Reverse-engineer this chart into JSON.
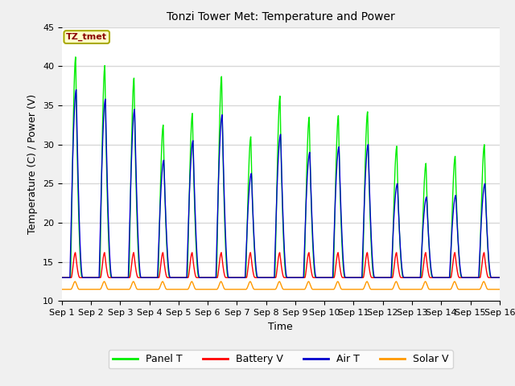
{
  "title": "Tonzi Tower Met: Temperature and Power",
  "xlabel": "Time",
  "ylabel": "Temperature (C) / Power (V)",
  "ylim": [
    10,
    45
  ],
  "xlim_days": 15,
  "fig_bg": "#f0f0f0",
  "plot_bg": "#ffffff",
  "grid_color": "#d8d8d8",
  "annotation_text": "TZ_tmet",
  "annotation_fg": "#8b0000",
  "annotation_bg": "#ffffcc",
  "legend_entries": [
    "Panel T",
    "Battery V",
    "Air T",
    "Solar V"
  ],
  "legend_colors": [
    "#00ee00",
    "#ff0000",
    "#0000cc",
    "#ff9900"
  ],
  "tick_labels": [
    "Sep 1",
    "Sep 2",
    "Sep 3",
    "Sep 4",
    "Sep 5",
    "Sep 6",
    "Sep 7",
    "Sep 8",
    "Sep 9",
    "Sep 10",
    "Sep 11",
    "Sep 12",
    "Sep 13",
    "Sep 14",
    "Sep 15",
    "Sep 16"
  ],
  "panel_t_peaks": [
    41.2,
    40.1,
    38.5,
    32.5,
    34.0,
    38.7,
    31.0,
    36.2,
    33.5,
    33.7,
    34.2,
    29.8,
    27.6,
    28.5,
    30.0
  ],
  "air_t_peaks": [
    37.0,
    35.8,
    34.5,
    28.0,
    30.5,
    33.8,
    26.3,
    31.3,
    29.0,
    29.7,
    30.0,
    25.0,
    23.3,
    23.5,
    25.0
  ],
  "night_min": 13.0,
  "air_night_min": 13.0,
  "battery_base": 13.0,
  "battery_peak": 16.2,
  "solar_base": 11.5,
  "solar_peak": 12.5
}
